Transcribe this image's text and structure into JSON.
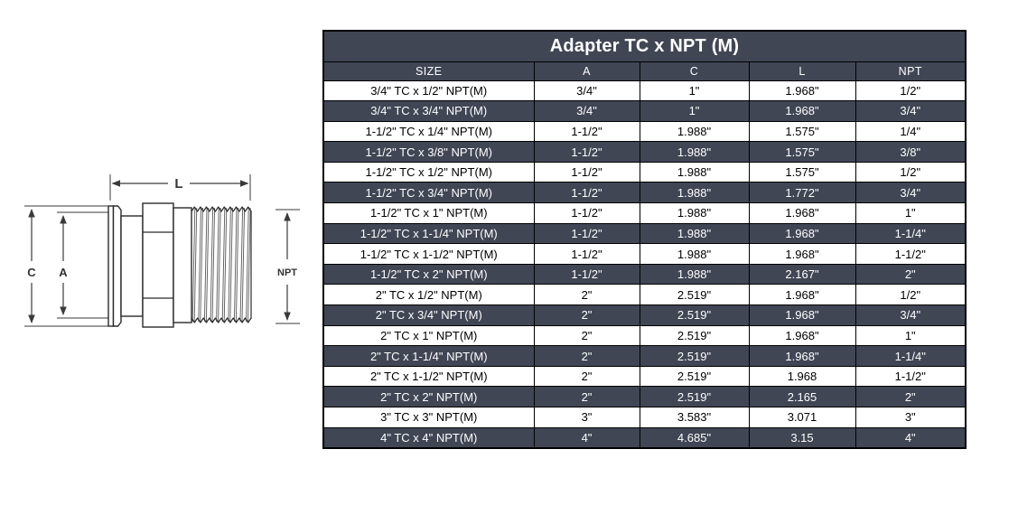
{
  "diagram": {
    "dim_l": "L",
    "dim_c": "C",
    "dim_a": "A",
    "dim_npt": "NPT"
  },
  "table": {
    "title": "Adapter TC x NPT (M)",
    "columns": [
      "SIZE",
      "A",
      "C",
      "L",
      "NPT"
    ],
    "rows": [
      [
        "3/4\" TC x 1/2\" NPT(M)",
        "3/4\"",
        "1\"",
        "1.968\"",
        "1/2\""
      ],
      [
        "3/4\" TC x 3/4\" NPT(M)",
        "3/4\"",
        "1\"",
        "1.968\"",
        "3/4\""
      ],
      [
        "1-1/2\" TC x 1/4\" NPT(M)",
        "1-1/2\"",
        "1.988\"",
        "1.575\"",
        "1/4\""
      ],
      [
        "1-1/2\" TC x 3/8\" NPT(M)",
        "1-1/2\"",
        "1.988\"",
        "1.575\"",
        "3/8\""
      ],
      [
        "1-1/2\" TC x 1/2\" NPT(M)",
        "1-1/2\"",
        "1.988\"",
        "1.575\"",
        "1/2\""
      ],
      [
        "1-1/2\" TC x 3/4\" NPT(M)",
        "1-1/2\"",
        "1.988\"",
        "1.772\"",
        "3/4\""
      ],
      [
        "1-1/2\" TC x 1\" NPT(M)",
        "1-1/2\"",
        "1.988\"",
        "1.968\"",
        "1\""
      ],
      [
        "1-1/2\" TC x 1-1/4\" NPT(M)",
        "1-1/2\"",
        "1.988\"",
        "1.968\"",
        "1-1/4\""
      ],
      [
        "1-1/2\" TC x 1-1/2\" NPT(M)",
        "1-1/2\"",
        "1.988\"",
        "1.968\"",
        "1-1/2\""
      ],
      [
        "1-1/2\" TC x 2\" NPT(M)",
        "1-1/2\"",
        "1.988\"",
        "2.167\"",
        "2\""
      ],
      [
        "2\" TC x 1/2\" NPT(M)",
        "2\"",
        "2.519\"",
        "1.968\"",
        "1/2\""
      ],
      [
        "2\" TC x 3/4\" NPT(M)",
        "2\"",
        "2.519\"",
        "1.968\"",
        "3/4\""
      ],
      [
        "2\" TC x 1\" NPT(M)",
        "2\"",
        "2.519\"",
        "1.968\"",
        "1\""
      ],
      [
        "2\" TC x 1-1/4\" NPT(M)",
        "2\"",
        "2.519\"",
        "1.968\"",
        "1-1/4\""
      ],
      [
        "2\" TC x 1-1/2\" NPT(M)",
        "2\"",
        "2.519\"",
        "1.968",
        "1-1/2\""
      ],
      [
        "2\" TC x 2\" NPT(M)",
        "2\"",
        "2.519\"",
        "2.165",
        "2\""
      ],
      [
        "3\" TC x 3\" NPT(M)",
        "3\"",
        "3.583\"",
        "3.071",
        "3\""
      ],
      [
        "4\" TC x 4\" NPT(M)",
        "4\"",
        "4.685\"",
        "3.15",
        "4\""
      ]
    ],
    "colors": {
      "header_bg": "#404654",
      "alt_row_bg": "#404654",
      "row_bg": "#ffffff",
      "header_text": "#ffffff",
      "row_text": "#000000",
      "border": "#000000"
    }
  }
}
